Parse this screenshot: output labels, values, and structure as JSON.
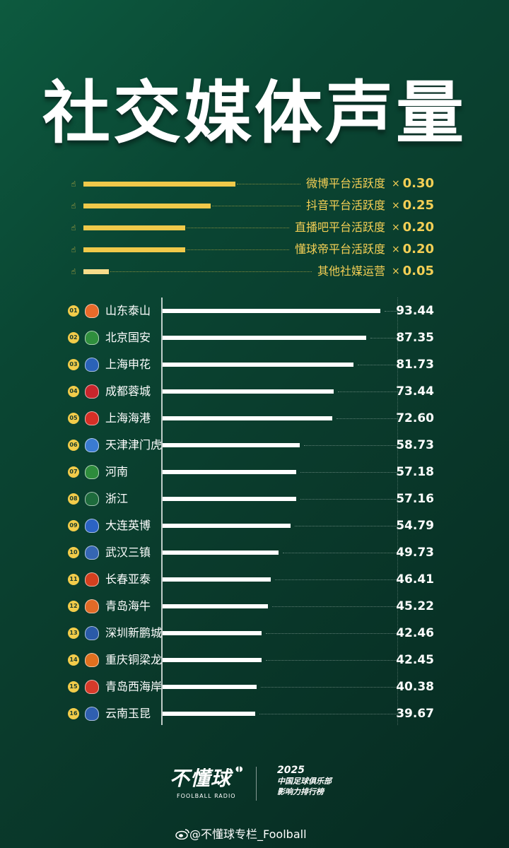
{
  "title": "社交媒体声量",
  "weights": [
    {
      "label": "微博平台活跃度",
      "times": "×",
      "value": "0.30",
      "weight": 0.3
    },
    {
      "label": "抖音平台活跃度",
      "times": "×",
      "value": "0.25",
      "weight": 0.25
    },
    {
      "label": "直播吧平台活跃度",
      "times": "×",
      "value": "0.20",
      "weight": 0.2
    },
    {
      "label": "懂球帝平台活跃度",
      "times": "×",
      "value": "0.20",
      "weight": 0.2
    },
    {
      "label": "其他社媒运营",
      "times": "×",
      "value": "0.05",
      "weight": 0.05
    }
  ],
  "chart_data": {
    "type": "bar",
    "orientation": "horizontal",
    "categories": [
      "山东泰山",
      "北京国安",
      "上海申花",
      "成都蓉城",
      "上海海港",
      "天津津门虎",
      "河南",
      "浙江",
      "大连英博",
      "武汉三镇",
      "长春亚泰",
      "青岛海牛",
      "深圳新鹏城",
      "重庆铜梁龙",
      "青岛西海岸",
      "云南玉昆"
    ],
    "ranks": [
      "01",
      "02",
      "03",
      "04",
      "05",
      "06",
      "07",
      "08",
      "09",
      "10",
      "11",
      "12",
      "13",
      "14",
      "15",
      "16"
    ],
    "values": [
      93.44,
      87.35,
      81.73,
      73.44,
      72.6,
      58.73,
      57.18,
      57.16,
      54.79,
      49.73,
      46.41,
      45.22,
      42.46,
      42.45,
      40.38,
      39.67
    ],
    "value_labels": [
      "93.44",
      "87.35",
      "81.73",
      "73.44",
      "72.60",
      "58.73",
      "57.18",
      "57.16",
      "54.79",
      "49.73",
      "46.41",
      "45.22",
      "42.46",
      "42.45",
      "40.38",
      "39.67"
    ],
    "crest_colors": [
      "#e86a2a",
      "#2f8f3d",
      "#2a62b8",
      "#c9252c",
      "#d62f26",
      "#3a7bd1",
      "#2d8c3c",
      "#1d6b3c",
      "#2b63c4",
      "#3566b3",
      "#d4401f",
      "#e06a26",
      "#2a5aa8",
      "#e0701f",
      "#d63a2a",
      "#2f5fb0"
    ],
    "xlim": [
      0,
      100
    ]
  },
  "footer": {
    "brand": "不懂球",
    "brand_sub": "FOOLBALL RADIO",
    "year": "2025",
    "event_line1": "中国足球俱乐部",
    "event_line2": "影响力排行榜",
    "watermark": "@不懂球专栏_Foolball"
  },
  "colors": {
    "accent": "#f2cc4a",
    "background": "#0a4633"
  }
}
